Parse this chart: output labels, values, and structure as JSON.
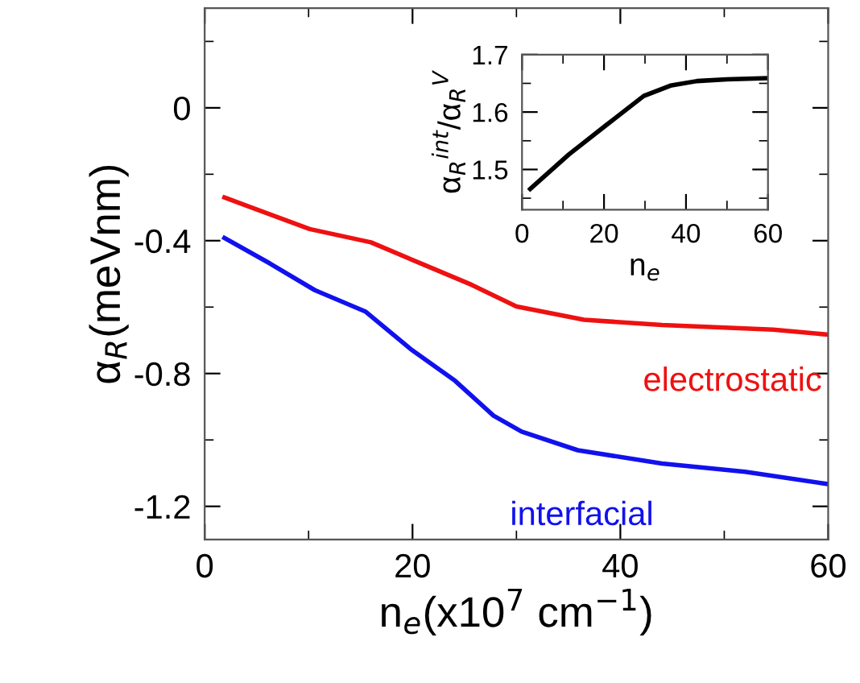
{
  "chart_data": [
    {
      "type": "line",
      "xlabel": "n$_{e}$(x10$^{7}$ cm$^{−1}$)",
      "ylabel": "α$_{R}$(meVnm)",
      "xlim": [
        0,
        60
      ],
      "ylim": [
        -1.3,
        0.3
      ],
      "xticks": [
        0,
        20,
        40,
        60
      ],
      "yticks": [
        {
          "value": -1.2,
          "label": "-1.2"
        },
        {
          "value": -0.8,
          "label": "-0.8"
        },
        {
          "value": -0.4,
          "label": "-0.4"
        },
        0
      ],
      "grid": false,
      "legend": false,
      "series": [
        {
          "name": "electrostatic",
          "color": "#ee1111",
          "x": [
            1.9,
            10.1,
            16,
            20.9,
            25.7,
            30,
            36.5,
            44,
            54.7,
            60
          ],
          "values": [
            -0.27,
            -0.365,
            -0.405,
            -0.47,
            -0.533,
            -0.598,
            -0.638,
            -0.654,
            -0.668,
            -0.683
          ]
        },
        {
          "name": "interfacial",
          "color": "#1111ee",
          "x": [
            1.9,
            6.3,
            10.6,
            15.5,
            19.8,
            24.1,
            27.8,
            30.5,
            35.9,
            44,
            52,
            60
          ],
          "values": [
            -0.392,
            -0.469,
            -0.549,
            -0.614,
            -0.726,
            -0.822,
            -0.927,
            -0.975,
            -1.031,
            -1.071,
            -1.096,
            -1.133
          ]
        }
      ]
    },
    {
      "type": "line",
      "xlabel": "n$_{e}$",
      "ylabel": "α$_{R}$$^{int}$/α$_{R}$$^{V}$",
      "xlim": [
        0,
        60
      ],
      "ylim": [
        1.43,
        1.7
      ],
      "xticks": [
        0,
        20,
        40,
        60
      ],
      "yticks": [
        1.5,
        1.6,
        1.7
      ],
      "grid": false,
      "legend": false,
      "series": [
        {
          "color": "#000000",
          "x": [
            2,
            11.4,
            20.5,
            29.7,
            36.2,
            42.7,
            50,
            60
          ],
          "values": [
            1.466,
            1.526,
            1.577,
            1.628,
            1.646,
            1.654,
            1.657,
            1.659
          ]
        }
      ]
    }
  ]
}
